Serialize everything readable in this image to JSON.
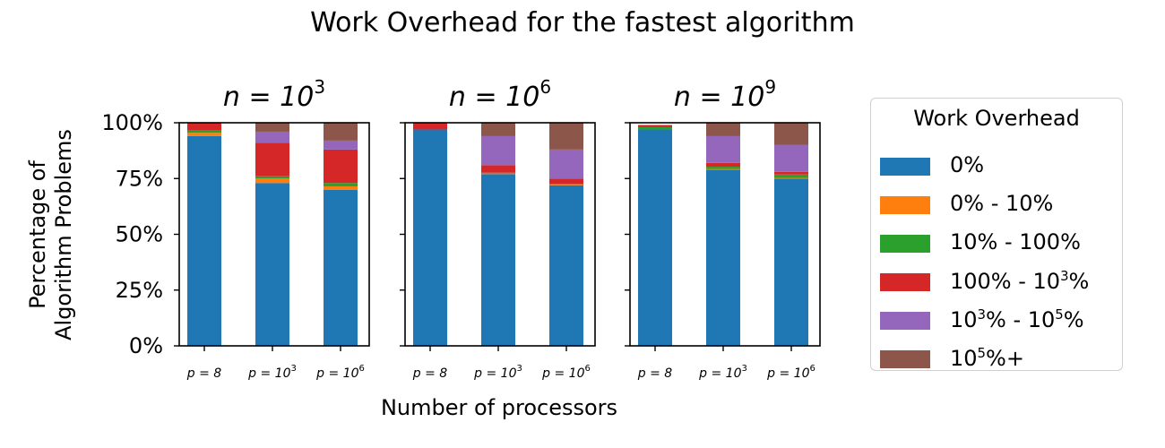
{
  "chart_data": {
    "type": "bar",
    "stacked": true,
    "title": "Work Overhead for the fastest algorithm",
    "xlabel": "Number of processors",
    "ylabel": [
      "Percentage of",
      "Algorithm Problems"
    ],
    "ylim": [
      0,
      100
    ],
    "yticks": [
      "0%",
      "25%",
      "50%",
      "75%",
      "100%"
    ],
    "categories": [
      {
        "base": "p = 8",
        "exp": ""
      },
      {
        "base": "p = 10",
        "exp": "3"
      },
      {
        "base": "p = 10",
        "exp": "6"
      }
    ],
    "legend": {
      "title": "Work Overhead",
      "placement": "right",
      "entries": [
        {
          "parts": [
            "0%"
          ],
          "color": "#1f77b4"
        },
        {
          "parts": [
            "0% - 10%"
          ],
          "color": "#ff7f0e"
        },
        {
          "parts": [
            "10% - 100%"
          ],
          "color": "#2ca02c"
        },
        {
          "parts": [
            "100% - 10",
            "3",
            "%"
          ],
          "color": "#d62728"
        },
        {
          "parts": [
            "10",
            "3",
            "% - 10",
            "5",
            "%"
          ],
          "color": "#9467bd"
        },
        {
          "parts": [
            "10",
            "5",
            "%+"
          ],
          "color": "#8c564b"
        }
      ]
    },
    "panels": [
      {
        "title_base": "n = 10",
        "title_exp": "3",
        "series_values": [
          [
            94,
            73,
            70
          ],
          [
            1.5,
            2,
            1.5
          ],
          [
            1,
            1,
            1.5
          ],
          [
            3.5,
            15,
            15
          ],
          [
            0,
            5,
            4
          ],
          [
            0,
            4,
            8
          ]
        ]
      },
      {
        "title_base": "n = 10",
        "title_exp": "6",
        "series_values": [
          [
            97,
            77,
            72
          ],
          [
            0,
            0.3,
            0.3
          ],
          [
            0,
            0.3,
            0.3
          ],
          [
            3,
            3.4,
            2.4
          ],
          [
            0,
            13,
            13
          ],
          [
            0,
            6,
            12
          ]
        ]
      },
      {
        "title_base": "n = 10",
        "title_exp": "9",
        "series_values": [
          [
            97,
            79,
            75
          ],
          [
            0,
            0.3,
            0.3
          ],
          [
            1,
            1,
            1.5
          ],
          [
            1,
            1.7,
            1.2
          ],
          [
            0,
            12,
            12
          ],
          [
            0,
            6,
            10
          ]
        ]
      }
    ]
  }
}
